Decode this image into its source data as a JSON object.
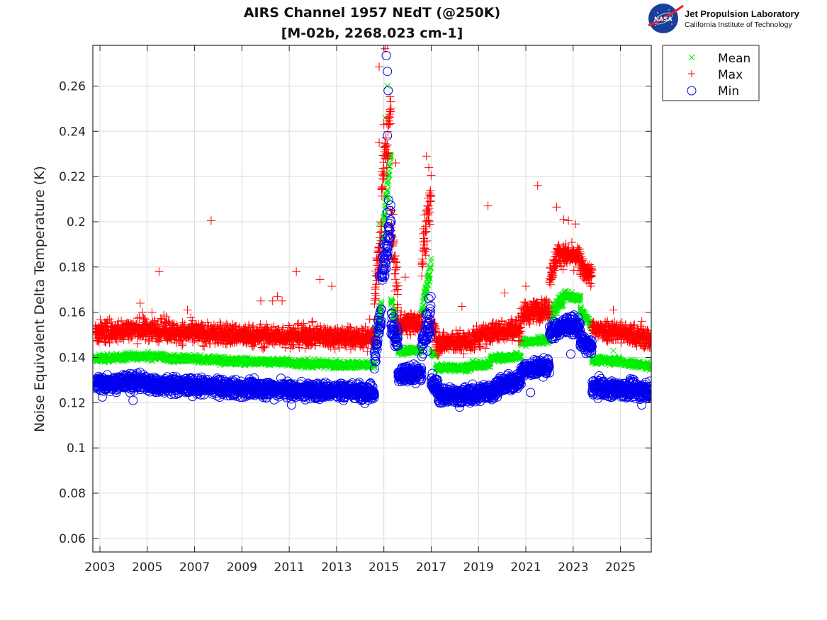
{
  "logo": {
    "org_name": "Jet Propulsion Laboratory",
    "org_sub": "California Institute of Technology",
    "badge_text": "NASA"
  },
  "chart_data": {
    "type": "scatter",
    "title": "AIRS Channel 1957 NEdT (@250K)",
    "subtitle": "[M-02b, 2268.023 cm-1]",
    "xlabel": "",
    "ylabel": "Noise Equivalent Delta Temperature (K)",
    "xlim": [
      2002.7,
      2026.3
    ],
    "ylim": [
      0.054,
      0.278
    ],
    "grid": true,
    "legend_position": "outside-top-right",
    "xticks": [
      2003,
      2005,
      2007,
      2009,
      2011,
      2013,
      2015,
      2017,
      2019,
      2021,
      2023,
      2025
    ],
    "xtick_labels": [
      "2003",
      "2005",
      "2007",
      "2009",
      "2011",
      "2013",
      "2015",
      "2017",
      "2019",
      "2021",
      "2023",
      "2025"
    ],
    "yticks": [
      0.06,
      0.08,
      0.1,
      0.12,
      0.14,
      0.16,
      0.18,
      0.2,
      0.22,
      0.24,
      0.26
    ],
    "ytick_labels": [
      "0.06",
      "0.08",
      "0.1",
      "0.12",
      "0.14",
      "0.16",
      "0.18",
      "0.2",
      "0.22",
      "0.24",
      "0.26"
    ],
    "series": [
      {
        "name": "Mean",
        "marker": "x",
        "color": "#00ee00",
        "spread": 0.0015,
        "segments": [
          {
            "x": [
              2002.8,
              2004.0
            ],
            "y": [
              0.1395,
              0.14
            ]
          },
          {
            "x": [
              2004.0,
              2005.8
            ],
            "y": [
              0.1405,
              0.1405
            ]
          },
          {
            "x": [
              2005.8,
              2008.0
            ],
            "y": [
              0.1395,
              0.139
            ]
          },
          {
            "x": [
              2008.0,
              2011.0
            ],
            "y": [
              0.1385,
              0.138
            ]
          },
          {
            "x": [
              2011.0,
              2014.6
            ],
            "y": [
              0.1375,
              0.1365
            ]
          },
          {
            "x": [
              2014.6,
              2014.9
            ],
            "y": [
              0.145,
              0.165
            ]
          },
          {
            "x": [
              2014.9,
              2015.3
            ],
            "y": [
              0.19,
              0.23
            ]
          },
          {
            "x": [
              2015.3,
              2015.6
            ],
            "y": [
              0.165,
              0.15
            ]
          },
          {
            "x": [
              2015.6,
              2016.6
            ],
            "y": [
              0.143,
              0.143
            ]
          },
          {
            "x": [
              2016.6,
              2017.0
            ],
            "y": [
              0.16,
              0.182
            ]
          },
          {
            "x": [
              2017.0,
              2017.2
            ],
            "y": [
              0.142,
              0.141
            ]
          },
          {
            "x": [
              2017.2,
              2018.7
            ],
            "y": [
              0.1355,
              0.1355
            ]
          },
          {
            "x": [
              2018.7,
              2019.5
            ],
            "y": [
              0.1365,
              0.137
            ]
          },
          {
            "x": [
              2019.5,
              2020.8
            ],
            "y": [
              0.1395,
              0.1405
            ]
          },
          {
            "x": [
              2020.8,
              2022.0
            ],
            "y": [
              0.1465,
              0.148
            ]
          },
          {
            "x": [
              2022.0,
              2022.7
            ],
            "y": [
              0.158,
              0.168
            ]
          },
          {
            "x": [
              2022.7,
              2023.3
            ],
            "y": [
              0.167,
              0.166
            ]
          },
          {
            "x": [
              2023.3,
              2023.8
            ],
            "y": [
              0.161,
              0.154
            ]
          },
          {
            "x": [
              2023.8,
              2025.0
            ],
            "y": [
              0.139,
              0.1385
            ]
          },
          {
            "x": [
              2025.0,
              2026.3
            ],
            "y": [
              0.138,
              0.136
            ]
          }
        ],
        "outliers": [
          {
            "x": 2008.4,
            "y": 0.1395
          },
          {
            "x": 2014.8,
            "y": 0.199
          },
          {
            "x": 2015.05,
            "y": 0.246
          },
          {
            "x": 2015.15,
            "y": 0.26
          },
          {
            "x": 2015.25,
            "y": 0.21
          },
          {
            "x": 2023.3,
            "y": 0.167
          },
          {
            "x": 2024.7,
            "y": 0.143
          }
        ]
      },
      {
        "name": "Max",
        "marker": "+",
        "color": "#ff0000",
        "spread": 0.0045,
        "segments": [
          {
            "x": [
              2002.8,
              2004.0
            ],
            "y": [
              0.151,
              0.1515
            ]
          },
          {
            "x": [
              2004.0,
              2006.0
            ],
            "y": [
              0.1525,
              0.152
            ]
          },
          {
            "x": [
              2006.0,
              2009.0
            ],
            "y": [
              0.151,
              0.15
            ]
          },
          {
            "x": [
              2009.0,
              2012.0
            ],
            "y": [
              0.1495,
              0.1495
            ]
          },
          {
            "x": [
              2012.0,
              2014.6
            ],
            "y": [
              0.1495,
              0.1485
            ]
          },
          {
            "x": [
              2014.6,
              2014.9
            ],
            "y": [
              0.165,
              0.195
            ]
          },
          {
            "x": [
              2014.9,
              2015.3
            ],
            "y": [
              0.215,
              0.25
            ]
          },
          {
            "x": [
              2015.3,
              2015.6
            ],
            "y": [
              0.2,
              0.165
            ]
          },
          {
            "x": [
              2015.6,
              2016.6
            ],
            "y": [
              0.155,
              0.155
            ]
          },
          {
            "x": [
              2016.6,
              2017.0
            ],
            "y": [
              0.185,
              0.21
            ]
          },
          {
            "x": [
              2017.0,
              2017.2
            ],
            "y": [
              0.155,
              0.152
            ]
          },
          {
            "x": [
              2017.2,
              2018.8
            ],
            "y": [
              0.1465,
              0.147
            ]
          },
          {
            "x": [
              2018.8,
              2019.5
            ],
            "y": [
              0.149,
              0.15
            ]
          },
          {
            "x": [
              2019.5,
              2020.8
            ],
            "y": [
              0.151,
              0.153
            ]
          },
          {
            "x": [
              2020.8,
              2022.0
            ],
            "y": [
              0.159,
              0.162
            ]
          },
          {
            "x": [
              2022.0,
              2022.3
            ],
            "y": [
              0.175,
              0.184
            ]
          },
          {
            "x": [
              2022.3,
              2023.3
            ],
            "y": [
              0.186,
              0.184
            ]
          },
          {
            "x": [
              2023.3,
              2023.8
            ],
            "y": [
              0.18,
              0.176
            ]
          },
          {
            "x": [
              2023.8,
              2025.0
            ],
            "y": [
              0.1525,
              0.1515
            ]
          },
          {
            "x": [
              2025.0,
              2026.3
            ],
            "y": [
              0.151,
              0.148
            ]
          }
        ],
        "outliers": [
          {
            "x": 2003.4,
            "y": 0.157
          },
          {
            "x": 2004.7,
            "y": 0.164
          },
          {
            "x": 2004.8,
            "y": 0.16
          },
          {
            "x": 2005.2,
            "y": 0.16
          },
          {
            "x": 2005.5,
            "y": 0.178
          },
          {
            "x": 2005.8,
            "y": 0.158
          },
          {
            "x": 2006.7,
            "y": 0.161
          },
          {
            "x": 2007.7,
            "y": 0.2005
          },
          {
            "x": 2009.8,
            "y": 0.165
          },
          {
            "x": 2010.3,
            "y": 0.165
          },
          {
            "x": 2010.5,
            "y": 0.167
          },
          {
            "x": 2010.7,
            "y": 0.165
          },
          {
            "x": 2011.3,
            "y": 0.178
          },
          {
            "x": 2012.3,
            "y": 0.1745
          },
          {
            "x": 2012.8,
            "y": 0.1715
          },
          {
            "x": 2014.4,
            "y": 0.157
          },
          {
            "x": 2014.8,
            "y": 0.2685
          },
          {
            "x": 2015.05,
            "y": 0.2765
          },
          {
            "x": 2015.15,
            "y": 0.278
          },
          {
            "x": 2014.8,
            "y": 0.235
          },
          {
            "x": 2015.0,
            "y": 0.243
          },
          {
            "x": 2015.5,
            "y": 0.226
          },
          {
            "x": 2015.9,
            "y": 0.1755
          },
          {
            "x": 2016.8,
            "y": 0.229
          },
          {
            "x": 2016.9,
            "y": 0.224
          },
          {
            "x": 2018.3,
            "y": 0.1625
          },
          {
            "x": 2019.4,
            "y": 0.207
          },
          {
            "x": 2020.1,
            "y": 0.1685
          },
          {
            "x": 2021.0,
            "y": 0.1715
          },
          {
            "x": 2021.5,
            "y": 0.216
          },
          {
            "x": 2022.3,
            "y": 0.2065
          },
          {
            "x": 2022.6,
            "y": 0.201
          },
          {
            "x": 2022.8,
            "y": 0.2005
          },
          {
            "x": 2023.1,
            "y": 0.199
          },
          {
            "x": 2024.7,
            "y": 0.161
          },
          {
            "x": 2025.9,
            "y": 0.156
          }
        ]
      },
      {
        "name": "Min",
        "marker": "o",
        "color": "#0000ee",
        "spread": 0.0035,
        "segments": [
          {
            "x": [
              2002.8,
              2005.0
            ],
            "y": [
              0.1285,
              0.1295
            ]
          },
          {
            "x": [
              2005.0,
              2008.0
            ],
            "y": [
              0.128,
              0.127
            ]
          },
          {
            "x": [
              2008.0,
              2011.0
            ],
            "y": [
              0.1265,
              0.126
            ]
          },
          {
            "x": [
              2011.0,
              2014.6
            ],
            "y": [
              0.1255,
              0.125
            ]
          },
          {
            "x": [
              2014.6,
              2014.9
            ],
            "y": [
              0.14,
              0.16
            ]
          },
          {
            "x": [
              2014.9,
              2015.3
            ],
            "y": [
              0.175,
              0.2
            ]
          },
          {
            "x": [
              2015.3,
              2015.6
            ],
            "y": [
              0.155,
              0.145
            ]
          },
          {
            "x": [
              2015.6,
              2016.6
            ],
            "y": [
              0.132,
              0.133
            ]
          },
          {
            "x": [
              2016.6,
              2017.0
            ],
            "y": [
              0.145,
              0.158
            ]
          },
          {
            "x": [
              2017.0,
              2017.3
            ],
            "y": [
              0.13,
              0.127
            ]
          },
          {
            "x": [
              2017.3,
              2019.0
            ],
            "y": [
              0.123,
              0.1235
            ]
          },
          {
            "x": [
              2019.0,
              2019.7
            ],
            "y": [
              0.1245,
              0.125
            ]
          },
          {
            "x": [
              2019.7,
              2020.8
            ],
            "y": [
              0.127,
              0.13
            ]
          },
          {
            "x": [
              2020.8,
              2022.0
            ],
            "y": [
              0.1345,
              0.136
            ]
          },
          {
            "x": [
              2022.0,
              2022.7
            ],
            "y": [
              0.151,
              0.154
            ]
          },
          {
            "x": [
              2022.7,
              2023.3
            ],
            "y": [
              0.155,
              0.153
            ]
          },
          {
            "x": [
              2023.3,
              2023.8
            ],
            "y": [
              0.147,
              0.144
            ]
          },
          {
            "x": [
              2023.8,
              2026.3
            ],
            "y": [
              0.127,
              0.125
            ]
          }
        ],
        "outliers": [
          {
            "x": 2003.1,
            "y": 0.1225
          },
          {
            "x": 2004.4,
            "y": 0.121
          },
          {
            "x": 2011.1,
            "y": 0.119
          },
          {
            "x": 2015.1,
            "y": 0.2735
          },
          {
            "x": 2015.15,
            "y": 0.2665
          },
          {
            "x": 2015.18,
            "y": 0.258
          },
          {
            "x": 2015.15,
            "y": 0.238
          },
          {
            "x": 2015.2,
            "y": 0.2095
          },
          {
            "x": 2015.15,
            "y": 0.204
          },
          {
            "x": 2014.8,
            "y": 0.176
          },
          {
            "x": 2016.9,
            "y": 0.166
          },
          {
            "x": 2018.2,
            "y": 0.118
          },
          {
            "x": 2021.2,
            "y": 0.1245
          },
          {
            "x": 2022.9,
            "y": 0.1415
          },
          {
            "x": 2025.9,
            "y": 0.119
          }
        ]
      }
    ]
  }
}
